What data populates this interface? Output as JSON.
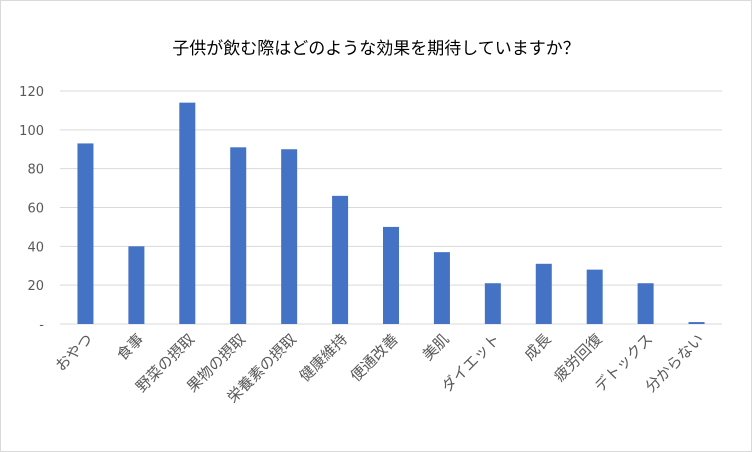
{
  "chart_data": {
    "type": "bar",
    "title": "子供が飲む際はどのような効果を期待していますか？",
    "categories": [
      "おやつ",
      "食事",
      "野菜の摂取",
      "果物の摂取",
      "栄養素の摂取",
      "健康維持",
      "便通改善",
      "美肌",
      "ダイエット",
      "成長",
      "疲労回復",
      "デトックス",
      "分からない"
    ],
    "values": [
      93,
      40,
      114,
      91,
      90,
      66,
      50,
      37,
      21,
      31,
      28,
      21,
      1
    ],
    "ylim": [
      0,
      120
    ],
    "yticks": [
      0,
      20,
      40,
      60,
      80,
      100,
      120
    ],
    "ytick_labels": [
      "-",
      "20",
      "40",
      "60",
      "80",
      "100",
      "120"
    ],
    "grid": true,
    "legend": "none",
    "colors": {
      "bar": "#4472c4",
      "grid": "#d9d9d9",
      "text": "#595959"
    }
  }
}
